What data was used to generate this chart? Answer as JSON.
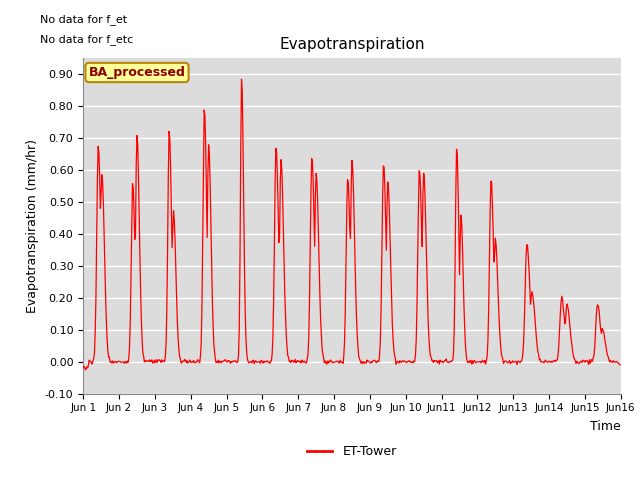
{
  "title": "Evapotranspiration",
  "ylabel": "Evapotranspiration (mm/hr)",
  "xlabel": "Time",
  "ylim": [
    -0.1,
    0.95
  ],
  "yticks": [
    -0.1,
    0.0,
    0.1,
    0.2,
    0.3,
    0.4,
    0.5,
    0.6,
    0.7,
    0.8,
    0.9
  ],
  "line_color": "#FF0000",
  "bg_color": "#DCDCDC",
  "legend_label": "ET-Tower",
  "no_data_text1": "No data for f_et",
  "no_data_text2": "No data for f_etc",
  "ba_label": "BA_processed",
  "figsize": [
    6.4,
    4.8
  ],
  "dpi": 100
}
